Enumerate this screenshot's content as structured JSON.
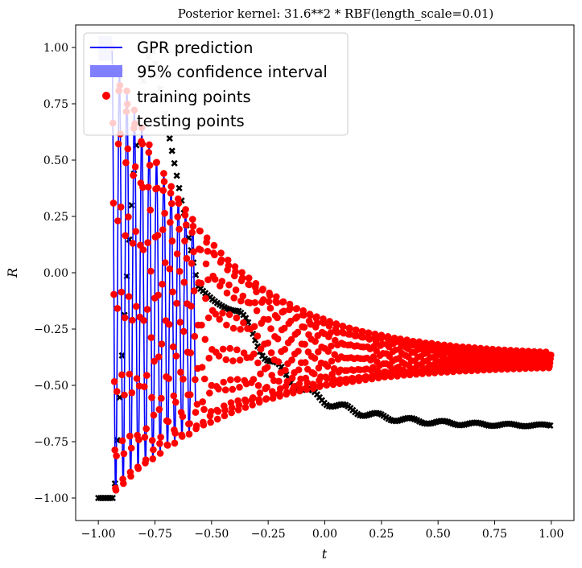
{
  "chart_data": {
    "type": "scatter",
    "title": "Posterior kernel: 31.6**2 * RBF(length_scale=0.01)",
    "xlabel": "t",
    "ylabel": "R",
    "xlim": [
      -1.1,
      1.1
    ],
    "ylim": [
      -1.1,
      1.1
    ],
    "xticks": [
      -1.0,
      -0.75,
      -0.5,
      -0.25,
      0.0,
      0.25,
      0.5,
      0.75,
      1.0
    ],
    "xtick_labels": [
      "−1.00",
      "−0.75",
      "−0.50",
      "−0.25",
      "0.00",
      "0.25",
      "0.50",
      "0.75",
      "1.00"
    ],
    "yticks": [
      -1.0,
      -0.75,
      -0.5,
      -0.25,
      0.0,
      0.25,
      0.5,
      0.75,
      1.0
    ],
    "ytick_labels": [
      "−1.00",
      "−0.75",
      "−0.50",
      "−0.25",
      "0.00",
      "0.25",
      "0.50",
      "0.75",
      "1.00"
    ],
    "grid": false,
    "legend_position": "top-left",
    "series": [
      {
        "name": "GPR prediction",
        "kind": "line",
        "color": "#0000ff",
        "x_range": [
          -0.94,
          -0.57
        ],
        "note_shape": "damped oscillation"
      },
      {
        "name": "95% confidence interval",
        "kind": "band",
        "color": "#8080ff"
      },
      {
        "name": "training points",
        "kind": "marker-circle",
        "color": "#ff0000",
        "model": {
          "x_range": [
            -0.94,
            1.0
          ],
          "baseline_start": 0.0,
          "baseline_end": -0.39,
          "amplitude_start": 1.0,
          "amplitude_end": 0.02,
          "frequency": 30
        }
      },
      {
        "name": "testing points",
        "kind": "marker-x",
        "color": "#000000",
        "model": {
          "x_range": [
            -1.0,
            1.0
          ],
          "peak": [
            -0.76,
            0.99
          ],
          "secondary_peak": [
            -0.38,
            -0.17
          ],
          "tail_value": -0.68
        }
      }
    ],
    "faded_points_note": "points near x=-1.0 to -0.6 appear faded behind legend"
  }
}
